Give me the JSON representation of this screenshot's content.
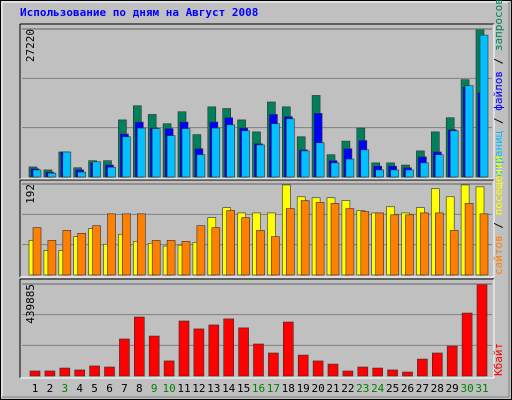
{
  "chart_data": [
    {
      "type": "bar",
      "title": "Использование по дням на Август 2008",
      "categories": [
        "1",
        "2",
        "3",
        "4",
        "5",
        "6",
        "7",
        "8",
        "9",
        "10",
        "11",
        "12",
        "13",
        "14",
        "15",
        "16",
        "17",
        "18",
        "19",
        "20",
        "21",
        "22",
        "23",
        "24",
        "25",
        "26",
        "27",
        "28",
        "29",
        "30",
        "31"
      ],
      "category_colors": [
        "#000000",
        "#000000",
        "#008000",
        "#000000",
        "#000000",
        "#000000",
        "#000000",
        "#000000",
        "#008000",
        "#008000",
        "#000000",
        "#000000",
        "#000000",
        "#000000",
        "#000000",
        "#008000",
        "#008000",
        "#000000",
        "#000000",
        "#000000",
        "#000000",
        "#000000",
        "#008000",
        "#008000",
        "#000000",
        "#000000",
        "#000000",
        "#000000",
        "#000000",
        "#008000",
        "#008000"
      ],
      "legend_separator": " / ",
      "ylim": [
        0,
        27220
      ],
      "yticks": [
        27220
      ],
      "series": [
        {
          "name": "запросов",
          "color": "#00805c",
          "values": [
            1850,
            1300,
            4600,
            1700,
            3000,
            3000,
            10500,
            13100,
            11500,
            9800,
            12000,
            7800,
            12900,
            12600,
            10500,
            8300,
            13800,
            12900,
            7400,
            15000,
            4100,
            6600,
            9000,
            2600,
            2600,
            2200,
            4800,
            8300,
            10900,
            17900,
            27220
          ]
        },
        {
          "name": "файлов",
          "color": "#0000ff",
          "values": [
            1500,
            900,
            4600,
            1300,
            2600,
            2200,
            7900,
            10100,
            9000,
            8900,
            10100,
            5200,
            10100,
            10900,
            9000,
            6100,
            11500,
            11100,
            5000,
            11700,
            3000,
            5200,
            6700,
            2000,
            2000,
            1700,
            3700,
            4600,
            8700,
            16500,
            15500
          ]
        },
        {
          "name": "страниц",
          "color": "#00c0ff",
          "values": [
            1300,
            700,
            4600,
            900,
            2800,
            1800,
            7400,
            9000,
            8900,
            7600,
            8900,
            4100,
            9000,
            9600,
            8500,
            5900,
            9800,
            10700,
            4800,
            6300,
            2600,
            3300,
            5000,
            1300,
            1300,
            1300,
            2600,
            4100,
            8500,
            16800,
            26100
          ]
        }
      ]
    },
    {
      "type": "bar",
      "legend_separator": " / ",
      "ylim": [
        0,
        192
      ],
      "yticks": [
        192
      ],
      "series": [
        {
          "name": "посещений",
          "color": "#ffff00",
          "values": [
            73,
            52,
            52,
            81,
            98,
            65,
            86,
            71,
            67,
            61,
            63,
            69,
            121,
            142,
            131,
            131,
            131,
            190,
            165,
            163,
            163,
            157,
            136,
            131,
            144,
            131,
            142,
            182,
            165,
            190,
            186
          ]
        },
        {
          "name": "сайтов",
          "color": "#ff8000",
          "values": [
            100,
            73,
            94,
            88,
            104,
            129,
            129,
            129,
            73,
            73,
            71,
            104,
            100,
            136,
            121,
            94,
            81,
            140,
            157,
            153,
            151,
            140,
            134,
            131,
            127,
            127,
            131,
            131,
            94,
            151,
            129
          ]
        }
      ]
    },
    {
      "type": "bar",
      "ylim": [
        0,
        439885
      ],
      "yticks": [
        439885
      ],
      "series": [
        {
          "name": "Кбайт",
          "color": "#ff0000",
          "values": [
            24000,
            24000,
            38000,
            29000,
            48000,
            43000,
            177000,
            282000,
            191000,
            72000,
            263000,
            225000,
            244000,
            273000,
            230000,
            153000,
            110000,
            258000,
            100000,
            72000,
            57000,
            24000,
            43000,
            38000,
            29000,
            19000,
            81000,
            110000,
            143000,
            301000,
            439885
          ]
        }
      ]
    }
  ]
}
